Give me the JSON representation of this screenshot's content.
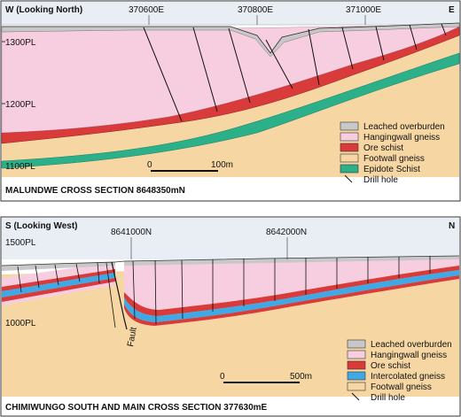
{
  "panel_top": {
    "left_label": "W (Looking North)",
    "right_label": "E",
    "easting_ticks": [
      "370600E",
      "370800E",
      "371000E"
    ],
    "elev_labels": [
      "1300PL",
      "1200PL",
      "1100PL"
    ],
    "title": "MALUNDWE CROSS SECTION 8648350mN",
    "scale": {
      "start": "0",
      "end": "100m"
    },
    "legend": [
      {
        "label": "Leached overburden",
        "color": "#c8c8c8"
      },
      {
        "label": "Hangingwall gneiss",
        "color": "#f7cde0"
      },
      {
        "label": "Ore schist",
        "color": "#d93a3a"
      },
      {
        "label": "Footwall gneiss",
        "color": "#f6d7a3"
      },
      {
        "label": "Epidote Schist",
        "color": "#2bb08a"
      },
      {
        "label": "Drill hole",
        "color": "#000000"
      }
    ]
  },
  "panel_bottom": {
    "left_label": "S (Looking West)",
    "right_label": "N",
    "northing_ticks": [
      "8641000N",
      "8642000N"
    ],
    "elev_labels": [
      "1500PL",
      "1000PL"
    ],
    "fault_label": "Fault",
    "title": "CHIMIWUNGO SOUTH AND MAIN CROSS SECTION 377630mE",
    "scale": {
      "start": "0",
      "end": "500m"
    },
    "legend": [
      {
        "label": "Leached overburden",
        "color": "#c8c8c8"
      },
      {
        "label": "Hangingwall gneiss",
        "color": "#f7cde0"
      },
      {
        "label": "Ore schist",
        "color": "#d93a3a"
      },
      {
        "label": "Intercolated gneiss",
        "color": "#3fa9e6"
      },
      {
        "label": "Footwall gneiss",
        "color": "#f6d7a3"
      },
      {
        "label": "Drill hole",
        "color": "#000000"
      }
    ]
  }
}
